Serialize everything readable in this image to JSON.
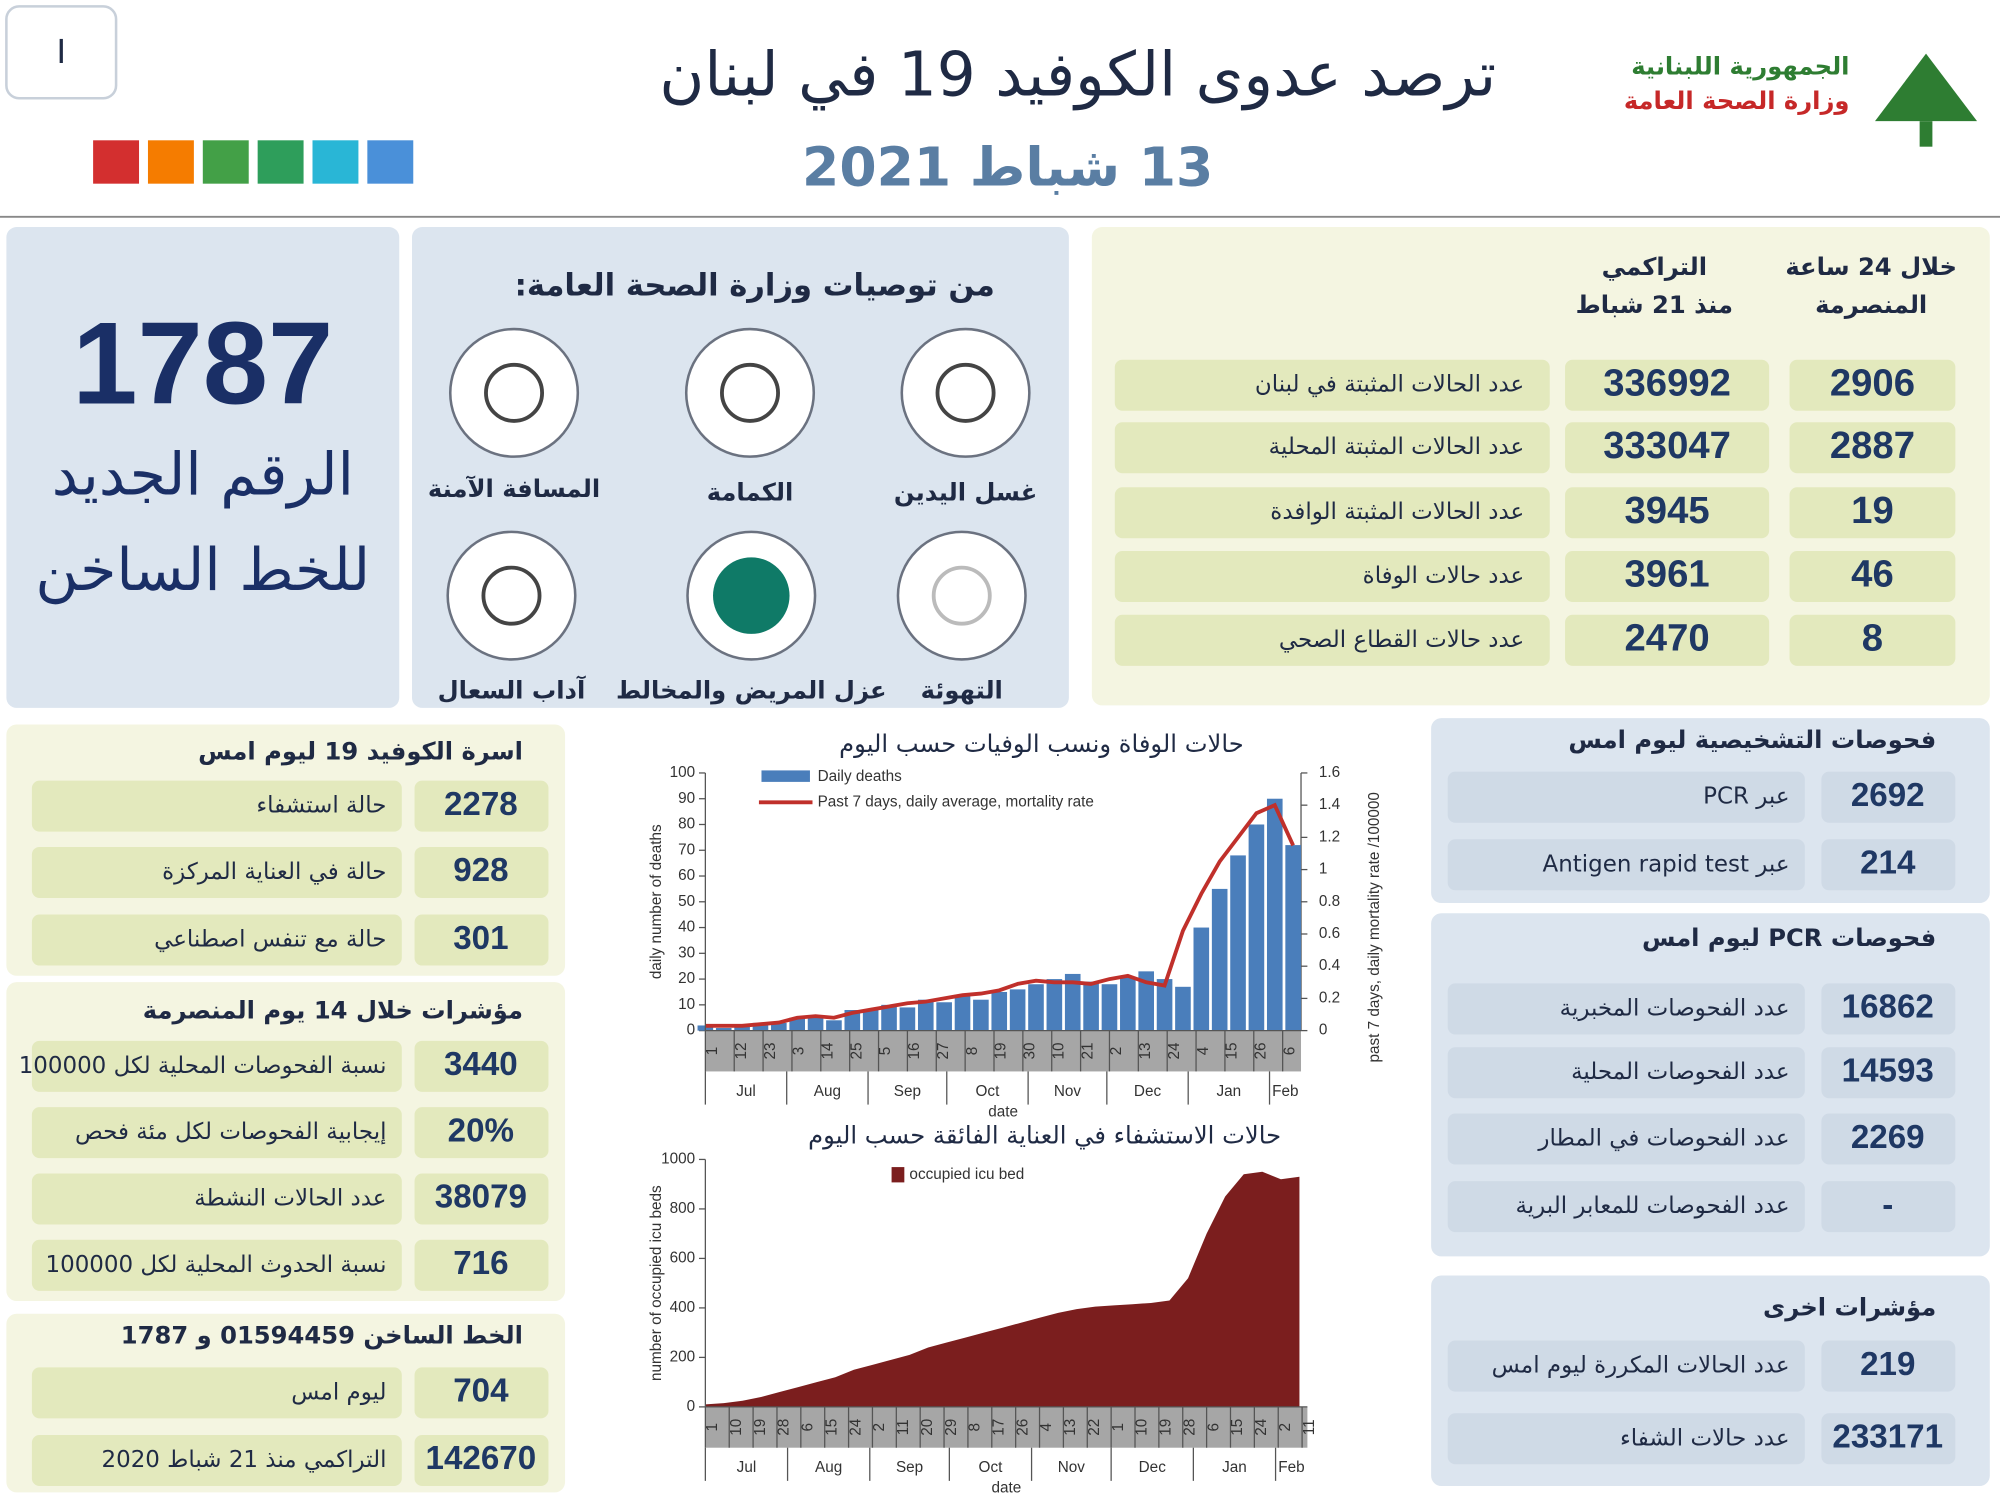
{
  "header": {
    "badge": "I",
    "title": "ترصد عدوى الكوفيد 19 في لبنان",
    "date": "13 شباط 2021",
    "ministry": [
      "الجمهورية اللبنانية",
      "وزارة الصحة العامة"
    ]
  },
  "hotline": {
    "number": 1787,
    "label": [
      "الرقم الجديد",
      "للخط الساخن"
    ]
  },
  "recommendations": {
    "title": "من توصيات وزارة الصحة العامة:",
    "items": [
      "غسل اليدين",
      "الكمامة",
      "المسافة الآمنة",
      "التهوئة",
      "عزل المريض والمخالط",
      "آداب السعال"
    ]
  },
  "cases": {
    "headers": [
      [
        "خلال 24 ساعة",
        "المنصرمة"
      ],
      [
        "التراكمي",
        "منذ 21 شباط"
      ]
    ],
    "rows": [
      {
        "label": "عدد الحالات المثبتة في لبنان",
        "daily": 2906,
        "cumulative": 336992
      },
      {
        "label": "عدد الحالات المثبتة المحلية",
        "daily": 2887,
        "cumulative": 333047
      },
      {
        "label": "عدد الحالات المثبتة الوافدة",
        "daily": 19,
        "cumulative": 3945
      },
      {
        "label": "عدد حالات الوفاة",
        "daily": 46,
        "cumulative": 3961
      },
      {
        "label": "عدد حالات القطاع الصحي",
        "daily": 8,
        "cumulative": 2470
      }
    ]
  },
  "diagnostic_tests": {
    "title": "فحوصات التشخيصية ليوم امس",
    "rows": [
      {
        "label": "عبر PCR",
        "value": 2692
      },
      {
        "label": "عبر Antigen rapid test",
        "value": 214
      }
    ]
  },
  "pcr_tests": {
    "title": "فحوصات PCR ليوم امس",
    "rows": [
      {
        "label": "عدد الفحوصات المخبرية",
        "value": 16862
      },
      {
        "label": "عدد الفحوصات المحلية",
        "value": 14593
      },
      {
        "label": "عدد الفحوصات في المطار",
        "value": 2269
      },
      {
        "label": "عدد الفحوصات للمعابر البرية",
        "value": "-"
      }
    ]
  },
  "other_indicators": {
    "title": "مؤشرات اخرى",
    "rows": [
      {
        "label": "عدد الحالات المكررة ليوم امس",
        "value": 219
      },
      {
        "label": "عدد حالات الشفاء",
        "value": 233171
      }
    ]
  },
  "covid_beds": {
    "title": "اسرة الكوفيد 19 ليوم امس",
    "rows": [
      {
        "label": "حالة استشفاء",
        "value": 2278
      },
      {
        "label": "حالة في العناية المركزة",
        "value": 928
      },
      {
        "label": "حالة مع تنفس اصطناعي",
        "value": 301
      }
    ]
  },
  "indicators_14_days": {
    "title": "مؤشرات خلال 14 يوم المنصرمة",
    "rows": [
      {
        "label": "نسبة الفحوصات المحلية لكل 100000",
        "value": 3440
      },
      {
        "label": "إيجابية الفحوصات لكل مئة فحص",
        "value": "20%"
      },
      {
        "label": "عدد الحالات النشطة",
        "value": 38079
      },
      {
        "label": "نسبة الحدوث المحلية لكل 100000",
        "value": 716
      }
    ]
  },
  "hotline_calls": {
    "title": "الخط الساخن 01594459 و 1787",
    "rows": [
      {
        "label": "ليوم امس",
        "value": 704
      },
      {
        "label": "التراكمي منذ 21 شباط 2020",
        "value": 142670
      }
    ]
  },
  "chart_data": [
    {
      "type": "bar_line",
      "title": "حالات الوفاة ونسب الوفيات حسب اليوم",
      "x_label": "date",
      "y_label": "daily number of deaths",
      "y2_label": "past 7 days, daily mortality rate /100000",
      "x": [
        0,
        7,
        14,
        21,
        28,
        35,
        42,
        49,
        56,
        63,
        70,
        77,
        84,
        91,
        98,
        105,
        112,
        119,
        126,
        133,
        140,
        147,
        154,
        161,
        168,
        175,
        182,
        189,
        196,
        203,
        210,
        217,
        224
      ],
      "xlim": [
        0,
        227
      ],
      "xticks": [
        {
          "value": 0,
          "label": "1"
        },
        {
          "value": 11,
          "label": "12"
        },
        {
          "value": 22,
          "label": "23"
        },
        {
          "value": 33,
          "label": "3"
        },
        {
          "value": 44,
          "label": "14"
        },
        {
          "value": 55,
          "label": "25"
        },
        {
          "value": 66,
          "label": "5"
        },
        {
          "value": 77,
          "label": "16"
        },
        {
          "value": 88,
          "label": "27"
        },
        {
          "value": 99,
          "label": "8"
        },
        {
          "value": 110,
          "label": "19"
        },
        {
          "value": 121,
          "label": "30"
        },
        {
          "value": 132,
          "label": "10"
        },
        {
          "value": 143,
          "label": "21"
        },
        {
          "value": 154,
          "label": "2"
        },
        {
          "value": 165,
          "label": "13"
        },
        {
          "value": 176,
          "label": "24"
        },
        {
          "value": 187,
          "label": "4"
        },
        {
          "value": 198,
          "label": "15"
        },
        {
          "value": 209,
          "label": "26"
        },
        {
          "value": 220,
          "label": "6"
        }
      ],
      "month_ticks": [
        {
          "value": 0,
          "label": "Jul"
        },
        {
          "value": 31,
          "label": "Aug"
        },
        {
          "value": 62,
          "label": "Sep"
        },
        {
          "value": 92,
          "label": "Oct"
        },
        {
          "value": 123,
          "label": "Nov"
        },
        {
          "value": 153,
          "label": "Dec"
        },
        {
          "value": 184,
          "label": "Jan"
        },
        {
          "value": 215,
          "label": "Feb"
        }
      ],
      "ylim": [
        0,
        100
      ],
      "yticks": [
        0,
        10,
        20,
        30,
        40,
        50,
        60,
        70,
        80,
        90,
        100
      ],
      "y2lim": [
        0,
        1.6
      ],
      "y2ticks": [
        0,
        0.2,
        0.4,
        0.6,
        0.8,
        1,
        1.2,
        1.4,
        1.6
      ],
      "series": [
        {
          "name": "Daily deaths",
          "color": "#4a7ebb",
          "values": [
            2,
            1,
            2,
            3,
            3,
            5,
            6,
            4,
            8,
            8,
            10,
            9,
            12,
            11,
            14,
            12,
            15,
            16,
            18,
            20,
            22,
            19,
            18,
            21,
            23,
            20,
            17,
            40,
            55,
            68,
            80,
            90,
            72
          ]
        },
        {
          "name": "Past 7 days, daily average, mortality rate",
          "color": "#c0302b",
          "axis": "y2",
          "values": [
            0.03,
            0.03,
            0.03,
            0.04,
            0.05,
            0.08,
            0.09,
            0.08,
            0.11,
            0.13,
            0.15,
            0.17,
            0.18,
            0.2,
            0.22,
            0.23,
            0.25,
            0.29,
            0.31,
            0.3,
            0.3,
            0.29,
            0.32,
            0.34,
            0.3,
            0.28,
            0.62,
            0.85,
            1.05,
            1.2,
            1.35,
            1.4,
            1.15
          ]
        }
      ]
    },
    {
      "type": "area",
      "title": "حالات الاستشفاء في العناية الفائقة حسب اليوم",
      "x_label": "date",
      "y_label": "number of occupied icu beds",
      "x": [
        0,
        7,
        14,
        21,
        28,
        35,
        42,
        49,
        56,
        63,
        70,
        77,
        84,
        91,
        98,
        105,
        112,
        119,
        126,
        133,
        140,
        147,
        154,
        161,
        168,
        175,
        182,
        189,
        196,
        203,
        210,
        217,
        224
      ],
      "xlim": [
        0,
        227
      ],
      "xticks": [
        {
          "value": 0,
          "label": "1"
        },
        {
          "value": 9,
          "label": "10"
        },
        {
          "value": 18,
          "label": "19"
        },
        {
          "value": 27,
          "label": "28"
        },
        {
          "value": 36,
          "label": "6"
        },
        {
          "value": 45,
          "label": "15"
        },
        {
          "value": 54,
          "label": "24"
        },
        {
          "value": 63,
          "label": "2"
        },
        {
          "value": 72,
          "label": "11"
        },
        {
          "value": 81,
          "label": "20"
        },
        {
          "value": 90,
          "label": "29"
        },
        {
          "value": 99,
          "label": "8"
        },
        {
          "value": 108,
          "label": "17"
        },
        {
          "value": 117,
          "label": "26"
        },
        {
          "value": 126,
          "label": "4"
        },
        {
          "value": 135,
          "label": "13"
        },
        {
          "value": 144,
          "label": "22"
        },
        {
          "value": 153,
          "label": "1"
        },
        {
          "value": 162,
          "label": "10"
        },
        {
          "value": 171,
          "label": "19"
        },
        {
          "value": 180,
          "label": "28"
        },
        {
          "value": 189,
          "label": "6"
        },
        {
          "value": 198,
          "label": "15"
        },
        {
          "value": 207,
          "label": "24"
        },
        {
          "value": 216,
          "label": "2"
        },
        {
          "value": 225,
          "label": "11"
        }
      ],
      "month_ticks": [
        {
          "value": 0,
          "label": "Jul"
        },
        {
          "value": 31,
          "label": "Aug"
        },
        {
          "value": 62,
          "label": "Sep"
        },
        {
          "value": 92,
          "label": "Oct"
        },
        {
          "value": 123,
          "label": "Nov"
        },
        {
          "value": 153,
          "label": "Dec"
        },
        {
          "value": 184,
          "label": "Jan"
        },
        {
          "value": 215,
          "label": "Feb"
        }
      ],
      "ylim": [
        0,
        1000
      ],
      "yticks": [
        0,
        200,
        400,
        600,
        800,
        1000
      ],
      "series": [
        {
          "name": "occupied icu bed",
          "color": "#7b1e1e",
          "values": [
            10,
            15,
            25,
            40,
            60,
            80,
            100,
            120,
            150,
            170,
            190,
            210,
            240,
            260,
            280,
            300,
            320,
            340,
            360,
            380,
            395,
            405,
            410,
            415,
            420,
            430,
            520,
            700,
            850,
            940,
            950,
            920,
            930
          ]
        }
      ]
    }
  ]
}
